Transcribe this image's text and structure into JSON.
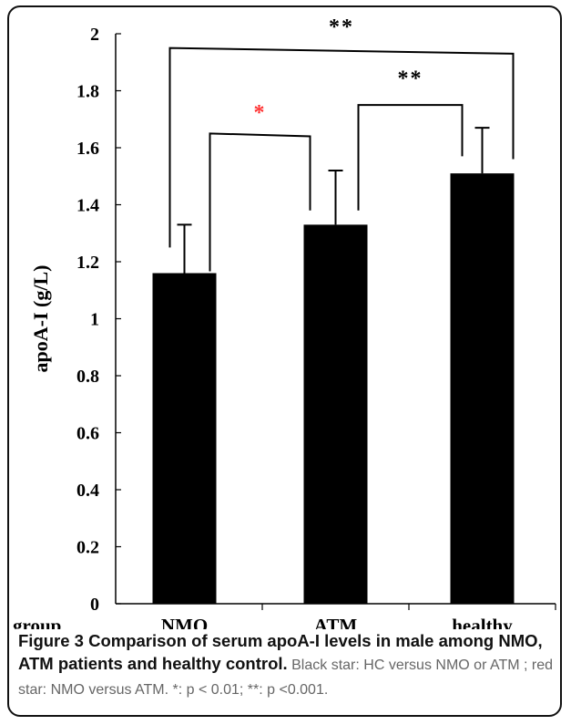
{
  "chart_data": {
    "type": "bar",
    "categories": [
      "NMO",
      "ATM",
      "healthy"
    ],
    "values": [
      1.16,
      1.33,
      1.51
    ],
    "errors": [
      0.17,
      0.19,
      0.16
    ],
    "ylabel": "apoA-I (g/L)",
    "xlabel": "group",
    "ylim": [
      0,
      2
    ],
    "yticks": [
      0,
      0.2,
      0.4,
      0.6,
      0.8,
      1,
      1.2,
      1.4,
      1.6,
      1.8,
      2
    ],
    "ytick_labels": [
      "0",
      "0.2",
      "0.4",
      "0.6",
      "0.8",
      "1",
      "1.2",
      "1.4",
      "1.6",
      "1.8",
      "2"
    ],
    "grid": false,
    "bar_color": "#000000",
    "significance": [
      {
        "from": "NMO",
        "to": "ATM",
        "label": "*",
        "color": "#ff3333"
      },
      {
        "from": "ATM",
        "to": "healthy",
        "label": "**",
        "color": "#000000"
      },
      {
        "from": "NMO",
        "to": "healthy",
        "label": "**",
        "color": "#000000"
      }
    ]
  },
  "caption": {
    "bold": "Figure 3 Comparison of serum apoA-I levels in male among NMO, ATM patients and healthy control.",
    "rest": " Black star: HC versus NMO or ATM ; red star: NMO versus ATM. *: p < 0.01; **: p <0.001."
  }
}
